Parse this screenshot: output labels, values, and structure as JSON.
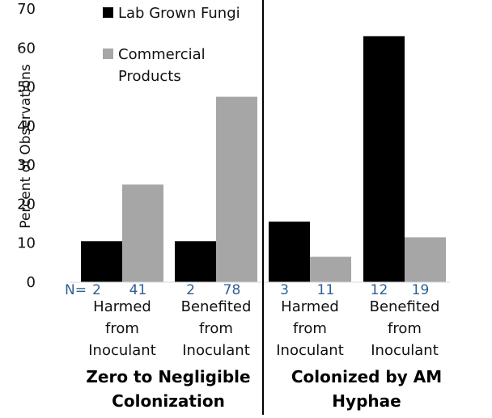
{
  "chart_data": {
    "type": "bar",
    "ylabel": "Percent of Observations",
    "ylim": [
      0,
      70
    ],
    "yticks": [
      0,
      10,
      20,
      30,
      40,
      50,
      60,
      70
    ],
    "grid": false,
    "legend_position": "top",
    "n_prefix": "N=",
    "series": [
      {
        "name": "Lab Grown Fungi",
        "color": "#000000",
        "values": [
          10.5,
          10.5,
          15.5,
          63
        ],
        "n": [
          "2",
          "2",
          "3",
          "12"
        ]
      },
      {
        "name": "Commercial Products",
        "color": "#a6a6a6",
        "values": [
          25,
          47.5,
          6.5,
          11.5
        ],
        "n": [
          "41",
          "78",
          "11",
          "19"
        ]
      }
    ],
    "categories": [
      {
        "lines": [
          "Harmed",
          "from",
          "Inoculant"
        ]
      },
      {
        "lines": [
          "Benefited",
          "from",
          "Inoculant"
        ]
      },
      {
        "lines": [
          "Harmed",
          "from",
          "Inoculant"
        ]
      },
      {
        "lines": [
          "Benefited",
          "from",
          "Inoculant"
        ]
      }
    ],
    "groups": [
      {
        "lines": [
          "Zero to Negligible",
          "Colonization"
        ]
      },
      {
        "lines": [
          "Colonized by AM",
          "Hyphae"
        ]
      }
    ]
  }
}
